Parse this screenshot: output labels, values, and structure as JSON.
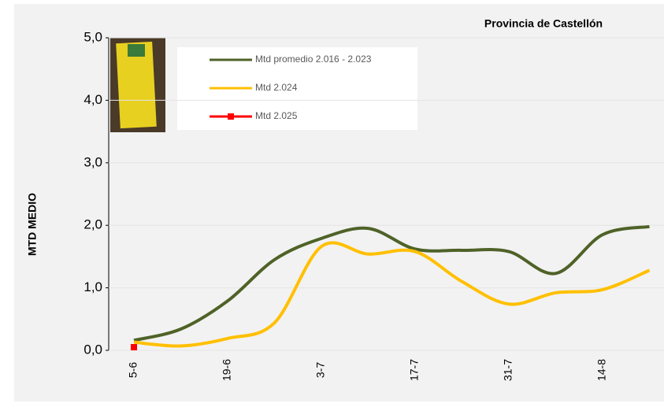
{
  "chart_data": {
    "type": "line",
    "title": "Provincia de Castellón",
    "y_label": "MTD MEDIO",
    "categories": [
      "5-6",
      null,
      "19-6",
      null,
      "3-7",
      null,
      "17-7",
      null,
      "31-7",
      null,
      "14-8",
      null
    ],
    "series": [
      {
        "name": "Mtd promedio 2.016 - 2.023",
        "color": "#4f6228",
        "values": [
          0.16,
          0.34,
          0.79,
          1.45,
          1.79,
          1.95,
          1.62,
          1.6,
          1.58,
          1.23,
          1.85,
          1.98
        ]
      },
      {
        "name": "Mtd 2.024",
        "color": "#ffc000",
        "values": [
          0.13,
          0.07,
          0.19,
          0.44,
          1.66,
          1.54,
          1.58,
          1.1,
          0.74,
          0.92,
          0.97,
          1.28
        ]
      },
      {
        "name": "Mtd 2.025",
        "color": "#ff0000",
        "marker": "square",
        "values": [
          0.05,
          null,
          null,
          null,
          null,
          null,
          null,
          null,
          null,
          null,
          null,
          null
        ]
      }
    ],
    "ylim": [
      0,
      5
    ],
    "yticks": [
      {
        "value": 0,
        "label": "0,0"
      },
      {
        "value": 1,
        "label": "1,0"
      },
      {
        "value": 2,
        "label": "2,0"
      },
      {
        "value": 3,
        "label": "3,0"
      },
      {
        "value": 4,
        "label": "4,0"
      },
      {
        "value": 5,
        "label": "5,0"
      }
    ],
    "grid": true
  }
}
